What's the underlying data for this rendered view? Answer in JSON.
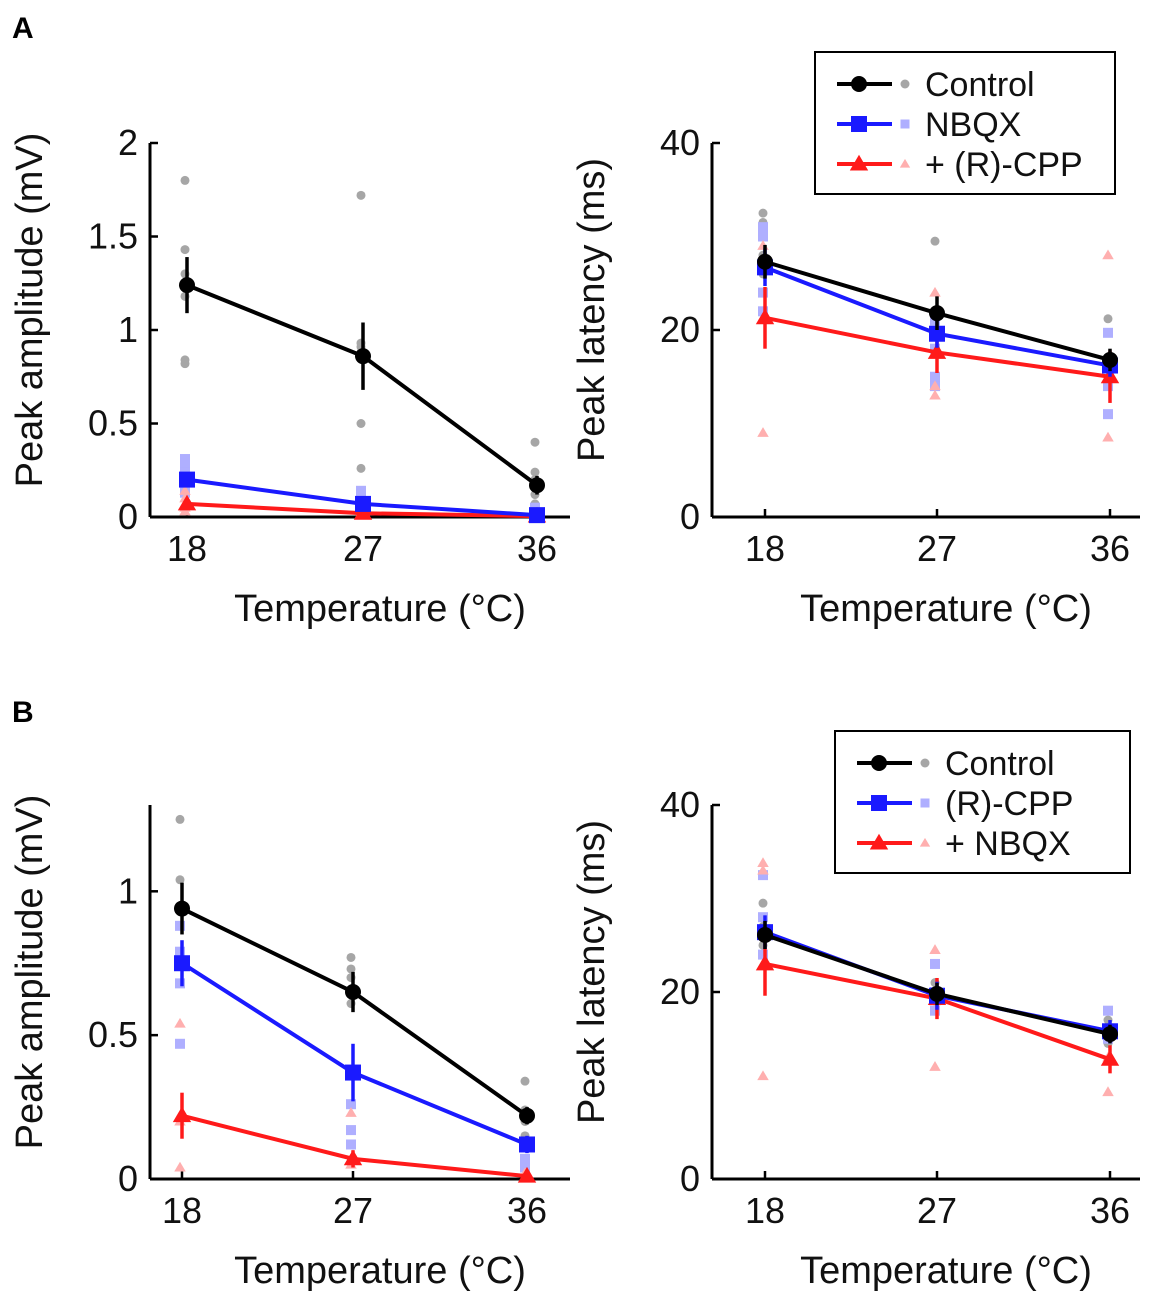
{
  "panels": [
    {
      "label": "A",
      "charts": [
        {
          "title": "",
          "xlabel": "Temperature (°C)",
          "ylabel": "Peak amplitude (mV)",
          "xticks": [
            "18",
            "27",
            "36"
          ],
          "yticks": [
            "0",
            "0.5",
            "1",
            "1.5",
            "2"
          ],
          "ylim": [
            0,
            2
          ],
          "series": [
            {
              "name": "Control",
              "color": "#000000",
              "marker": "circle",
              "values": [
                1.24,
                0.86,
                0.17
              ],
              "err": [
                0.15,
                0.18,
                0.05
              ]
            },
            {
              "name": "NBQX",
              "color": "#1a1aff",
              "marker": "square",
              "values": [
                0.2,
                0.07,
                0.01
              ],
              "err": [
                0.04,
                0.02,
                0.01
              ]
            },
            {
              "name": "+ (R)-CPP",
              "color": "#ff1a1a",
              "marker": "triangle",
              "values": [
                0.07,
                0.02,
                0.005
              ],
              "err": [
                0.02,
                0.01,
                0.005
              ]
            }
          ],
          "scatter": [
            {
              "series": 0,
              "x": 0,
              "y": [
                1.8,
                1.43,
                1.3,
                0.84,
                0.82,
                1.18
              ]
            },
            {
              "series": 0,
              "x": 1,
              "y": [
                1.72,
                0.93,
                0.91,
                0.88,
                0.5,
                0.26
              ]
            },
            {
              "series": 0,
              "x": 2,
              "y": [
                0.4,
                0.24,
                0.2,
                0.12,
                0.07
              ]
            },
            {
              "series": 1,
              "x": 0,
              "y": [
                0.31,
                0.27,
                0.24,
                0.17,
                0.13
              ]
            },
            {
              "series": 1,
              "x": 1,
              "y": [
                0.14,
                0.11,
                0.07,
                0.05
              ]
            },
            {
              "series": 1,
              "x": 2,
              "y": [
                0.05,
                0.03,
                0.02
              ]
            },
            {
              "series": 2,
              "x": 0,
              "y": [
                0.14,
                0.1,
                0.05,
                0.03
              ]
            },
            {
              "series": 2,
              "x": 1,
              "y": [
                0.03,
                0.02
              ]
            },
            {
              "series": 2,
              "x": 2,
              "y": [
                0.01,
                0.02
              ]
            }
          ]
        },
        {
          "title": "",
          "xlabel": "Temperature (°C)",
          "ylabel": "Peak latency (ms)",
          "xticks": [
            "18",
            "27",
            "36"
          ],
          "yticks": [
            "0",
            "20",
            "40"
          ],
          "ylim": [
            0,
            40
          ],
          "legend": [
            "Control",
            "NBQX",
            "+ (R)-CPP"
          ],
          "series": [
            {
              "name": "Control",
              "color": "#000000",
              "marker": "circle",
              "values": [
                27.3,
                21.8,
                16.8
              ],
              "err": [
                1.8,
                1.8,
                1.2
              ]
            },
            {
              "name": "NBQX",
              "color": "#1a1aff",
              "marker": "square",
              "values": [
                26.7,
                19.6,
                16.2
              ],
              "err": [
                2.0,
                1.5,
                1.2
              ]
            },
            {
              "name": "+ (R)-CPP",
              "color": "#ff1a1a",
              "marker": "triangle",
              "values": [
                21.3,
                17.6,
                15.0
              ],
              "err": [
                3.3,
                2.2,
                2.8
              ]
            }
          ],
          "scatter": [
            {
              "series": 0,
              "x": 0,
              "y": [
                32.5,
                31.5,
                28.0,
                26.0
              ]
            },
            {
              "series": 0,
              "x": 1,
              "y": [
                29.5,
                22.0,
                21.0
              ]
            },
            {
              "series": 0,
              "x": 2,
              "y": [
                21.2,
                17.0,
                14.0
              ]
            },
            {
              "series": 1,
              "x": 0,
              "y": [
                31.0,
                30.0,
                24.0,
                22.0
              ]
            },
            {
              "series": 1,
              "x": 1,
              "y": [
                21.0,
                18.0,
                15.0,
                14.0
              ]
            },
            {
              "series": 1,
              "x": 2,
              "y": [
                19.7,
                14.0,
                11.0
              ]
            },
            {
              "series": 2,
              "x": 0,
              "y": [
                29.0,
                27.0,
                9.0
              ]
            },
            {
              "series": 2,
              "x": 1,
              "y": [
                24.0,
                13.0,
                14.0
              ]
            },
            {
              "series": 2,
              "x": 2,
              "y": [
                28.0,
                8.5,
                17.0
              ]
            }
          ]
        }
      ]
    },
    {
      "label": "B",
      "charts": [
        {
          "title": "",
          "xlabel": "Temperature (°C)",
          "ylabel": "Peak amplitude (mV)",
          "xticks": [
            "18",
            "27",
            "36"
          ],
          "yticks": [
            "0",
            "0.5",
            "1"
          ],
          "ylim": [
            0,
            1.3
          ],
          "series": [
            {
              "name": "Control",
              "color": "#000000",
              "marker": "circle",
              "values": [
                0.94,
                0.65,
                0.22
              ],
              "err": [
                0.09,
                0.07,
                0.03
              ]
            },
            {
              "name": "(R)-CPP",
              "color": "#1a1aff",
              "marker": "square",
              "values": [
                0.75,
                0.37,
                0.12
              ],
              "err": [
                0.08,
                0.1,
                0.03
              ]
            },
            {
              "name": "+ NBQX",
              "color": "#ff1a1a",
              "marker": "triangle",
              "values": [
                0.22,
                0.07,
                0.01
              ],
              "err": [
                0.08,
                0.03,
                0.01
              ]
            }
          ],
          "scatter": [
            {
              "series": 0,
              "x": 0,
              "y": [
                1.25,
                1.04,
                0.95,
                0.88
              ]
            },
            {
              "series": 0,
              "x": 1,
              "y": [
                0.77,
                0.73,
                0.7,
                0.61
              ]
            },
            {
              "series": 0,
              "x": 2,
              "y": [
                0.34,
                0.24,
                0.2,
                0.15
              ]
            },
            {
              "series": 1,
              "x": 0,
              "y": [
                0.88,
                0.79,
                0.68,
                0.47
              ]
            },
            {
              "series": 1,
              "x": 1,
              "y": [
                0.26,
                0.17,
                0.12
              ]
            },
            {
              "series": 1,
              "x": 2,
              "y": [
                0.12,
                0.07,
                0.04
              ]
            },
            {
              "series": 2,
              "x": 0,
              "y": [
                0.54,
                0.2,
                0.04
              ]
            },
            {
              "series": 2,
              "x": 1,
              "y": [
                0.23,
                0.07,
                0.05
              ]
            },
            {
              "series": 2,
              "x": 2,
              "y": [
                0.02
              ]
            }
          ]
        },
        {
          "title": "",
          "xlabel": "Temperature (°C)",
          "ylabel": "Peak latency (ms)",
          "xticks": [
            "18",
            "27",
            "36"
          ],
          "yticks": [
            "0",
            "20",
            "40"
          ],
          "ylim": [
            0,
            40
          ],
          "legend": [
            "Control",
            "(R)-CPP",
            "+ NBQX"
          ],
          "series": [
            {
              "name": "Control",
              "color": "#000000",
              "marker": "circle",
              "values": [
                26.1,
                19.8,
                15.5
              ],
              "err": [
                1.5,
                1.2,
                1.0
              ]
            },
            {
              "name": "(R)-CPP",
              "color": "#1a1aff",
              "marker": "square",
              "values": [
                26.4,
                19.6,
                15.8
              ],
              "err": [
                1.8,
                1.5,
                1.2
              ]
            },
            {
              "name": "+ NBQX",
              "color": "#ff1a1a",
              "marker": "triangle",
              "values": [
                23.0,
                19.3,
                12.8
              ],
              "err": [
                3.4,
                2.2,
                1.5
              ]
            }
          ],
          "scatter": [
            {
              "series": 0,
              "x": 0,
              "y": [
                29.5,
                27.0,
                25.0
              ]
            },
            {
              "series": 0,
              "x": 1,
              "y": [
                21.0,
                19.0,
                18.0
              ]
            },
            {
              "series": 0,
              "x": 2,
              "y": [
                17.0,
                15.0,
                14.5
              ]
            },
            {
              "series": 1,
              "x": 0,
              "y": [
                32.5,
                28.0,
                24.0
              ]
            },
            {
              "series": 1,
              "x": 1,
              "y": [
                23.0,
                20.0,
                18.0
              ]
            },
            {
              "series": 1,
              "x": 2,
              "y": [
                18.0,
                16.0,
                15.0
              ]
            },
            {
              "series": 2,
              "x": 0,
              "y": [
                33.8,
                33.0,
                11.0
              ]
            },
            {
              "series": 2,
              "x": 1,
              "y": [
                24.5,
                12.0,
                19.0
              ]
            },
            {
              "series": 2,
              "x": 2,
              "y": [
                16.0,
                9.3,
                13.0
              ]
            }
          ]
        }
      ]
    }
  ],
  "chart_data": [
    {
      "type": "line",
      "title": "",
      "panel": "A",
      "xlabel": "Temperature (°C)",
      "ylabel": "Peak amplitude (mV)",
      "x": [
        18,
        27,
        36
      ],
      "ylim": [
        0,
        2
      ],
      "series": [
        {
          "name": "Control",
          "values": [
            1.24,
            0.86,
            0.17
          ]
        },
        {
          "name": "NBQX",
          "values": [
            0.2,
            0.07,
            0.01
          ]
        },
        {
          "name": "+ (R)-CPP",
          "values": [
            0.07,
            0.02,
            0.005
          ]
        }
      ]
    },
    {
      "type": "line",
      "title": "",
      "panel": "A",
      "xlabel": "Temperature (°C)",
      "ylabel": "Peak latency (ms)",
      "x": [
        18,
        27,
        36
      ],
      "ylim": [
        0,
        40
      ],
      "legend": [
        "Control",
        "NBQX",
        "+ (R)-CPP"
      ],
      "series": [
        {
          "name": "Control",
          "values": [
            27.3,
            21.8,
            16.8
          ]
        },
        {
          "name": "NBQX",
          "values": [
            26.7,
            19.6,
            16.2
          ]
        },
        {
          "name": "+ (R)-CPP",
          "values": [
            21.3,
            17.6,
            15.0
          ]
        }
      ]
    },
    {
      "type": "line",
      "title": "",
      "panel": "B",
      "xlabel": "Temperature (°C)",
      "ylabel": "Peak amplitude (mV)",
      "x": [
        18,
        27,
        36
      ],
      "ylim": [
        0,
        1.3
      ],
      "series": [
        {
          "name": "Control",
          "values": [
            0.94,
            0.65,
            0.22
          ]
        },
        {
          "name": "(R)-CPP",
          "values": [
            0.75,
            0.37,
            0.12
          ]
        },
        {
          "name": "+ NBQX",
          "values": [
            0.22,
            0.07,
            0.01
          ]
        }
      ]
    },
    {
      "type": "line",
      "title": "",
      "panel": "B",
      "xlabel": "Temperature (°C)",
      "ylabel": "Peak latency (ms)",
      "x": [
        18,
        27,
        36
      ],
      "ylim": [
        0,
        40
      ],
      "legend": [
        "Control",
        "(R)-CPP",
        "+ NBQX"
      ],
      "series": [
        {
          "name": "Control",
          "values": [
            26.1,
            19.8,
            15.5
          ]
        },
        {
          "name": "(R)-CPP",
          "values": [
            26.4,
            19.6,
            15.8
          ]
        },
        {
          "name": "+ NBQX",
          "values": [
            23.0,
            19.3,
            12.8
          ]
        }
      ]
    }
  ]
}
